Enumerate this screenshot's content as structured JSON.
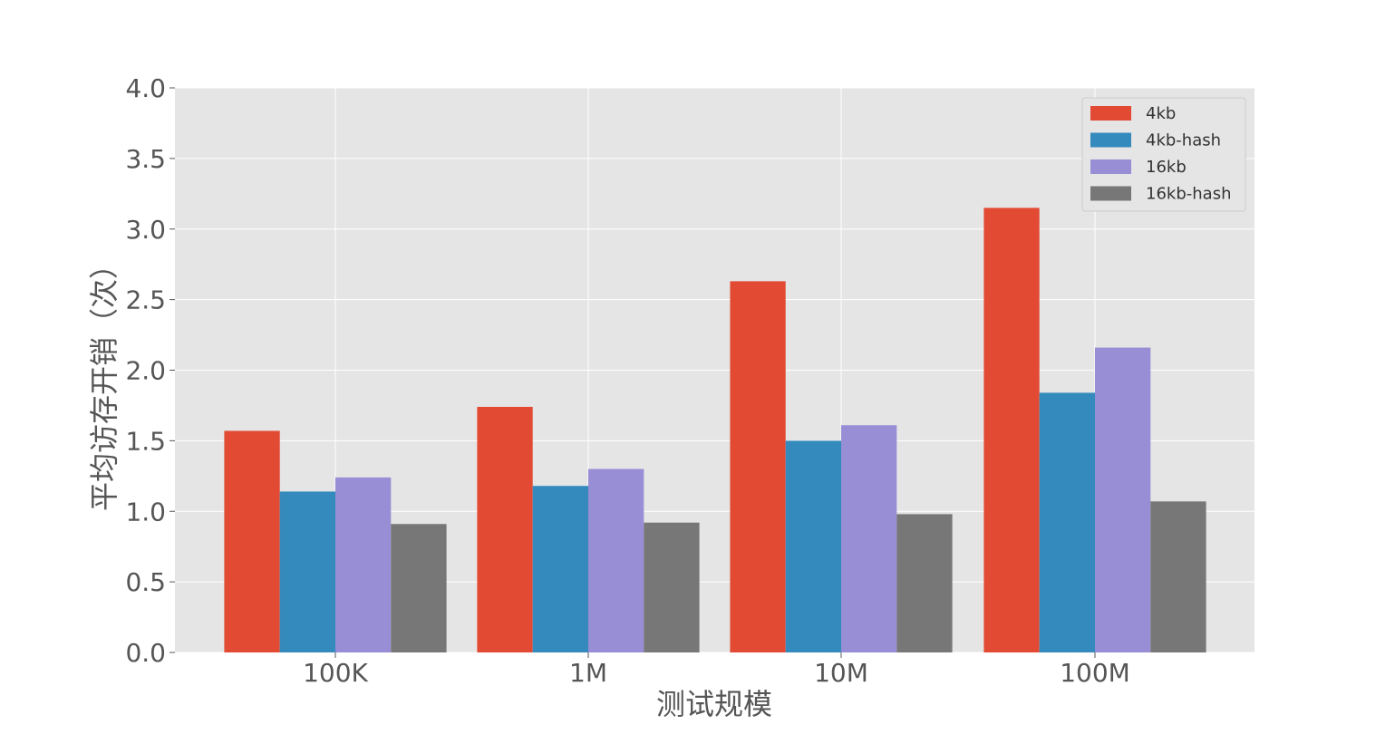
{
  "chart_data": {
    "type": "bar",
    "title": "",
    "xlabel": "测试规模",
    "ylabel": "平均访存开销（次）",
    "categories": [
      "100K",
      "1M",
      "10M",
      "100M"
    ],
    "ylim": [
      0,
      4.0
    ],
    "yticks": [
      "0.0",
      "0.5",
      "1.0",
      "1.5",
      "2.0",
      "2.5",
      "3.0",
      "3.5",
      "4.0"
    ],
    "grid": true,
    "legend_position": "top-right",
    "series": [
      {
        "name": "4kb",
        "color": "#E24A33",
        "values": [
          1.57,
          1.74,
          2.63,
          3.15
        ]
      },
      {
        "name": "4kb-hash",
        "color": "#348ABD",
        "values": [
          1.14,
          1.18,
          1.5,
          1.84
        ]
      },
      {
        "name": "16kb",
        "color": "#988ED5",
        "values": [
          1.24,
          1.3,
          1.61,
          2.16
        ]
      },
      {
        "name": "16kb-hash",
        "color": "#777777",
        "values": [
          0.91,
          0.92,
          0.98,
          1.07
        ]
      }
    ]
  }
}
